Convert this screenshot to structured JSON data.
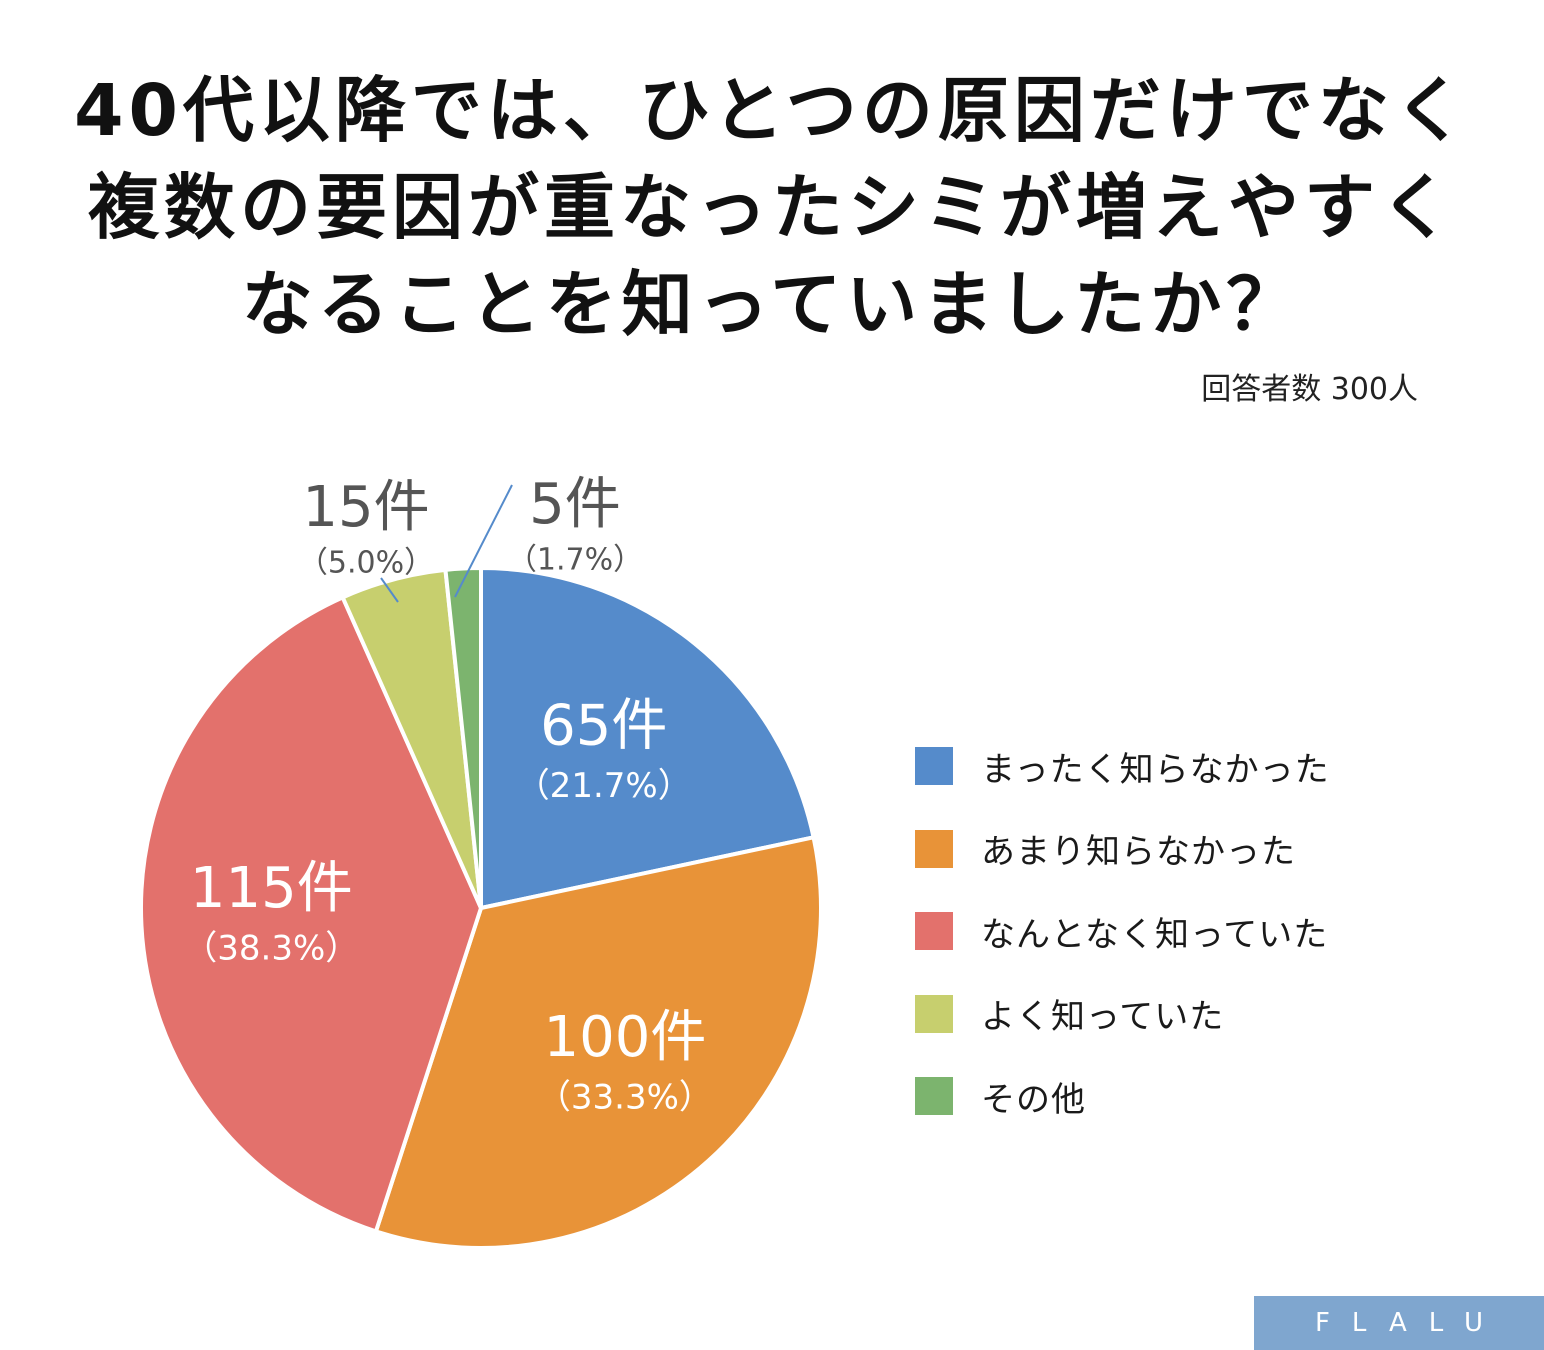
{
  "title_lines": [
    "40代以降では、ひとつの原因だけでなく",
    "複数の要因が重なったシミが増えやすく",
    "なることを知っていましたか？"
  ],
  "respondents": "回答者数 300人",
  "logo": "FLALU",
  "chart_data": {
    "type": "pie",
    "title": "40代以降では、ひとつの原因だけでなく複数の要因が重なったシミが増えやすくなることを知っていましたか？",
    "total": 300,
    "start_angle_deg": 0,
    "direction": "clockwise",
    "slices": [
      {
        "label": "まったく知らなかった",
        "count": 65,
        "count_label": "65件",
        "percent_label": "（21.7%）",
        "color": "#558bcb"
      },
      {
        "label": "あまり知らなかった",
        "count": 100,
        "count_label": "100件",
        "percent_label": "（33.3%）",
        "color": "#e89338"
      },
      {
        "label": "なんとなく知っていた",
        "count": 115,
        "count_label": "115件",
        "percent_label": "（38.3%）",
        "color": "#e3716c"
      },
      {
        "label": "よく知っていた",
        "count": 15,
        "count_label": "15件",
        "percent_label": "（5.0%）",
        "color": "#c7cf6e"
      },
      {
        "label": "その他",
        "count": 5,
        "count_label": "5件",
        "percent_label": "（1.7%）",
        "color": "#7cb46e"
      }
    ],
    "legend_position": "right"
  }
}
